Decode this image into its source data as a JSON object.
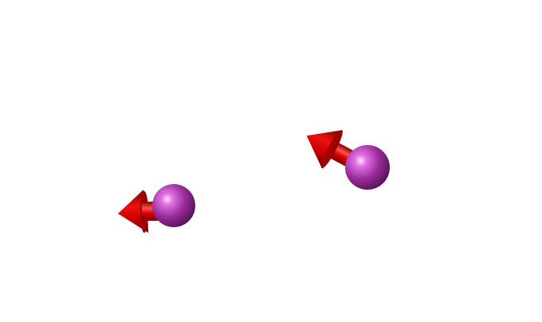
{
  "scene": {
    "background": "#ffffff",
    "objects": [
      {
        "name": "left-atom",
        "sphere_color": "#8b2a8b",
        "sphere_highlight": "#ffd8ff",
        "arrow_color": "#cc0000",
        "arrow_highlight": "#ff7070",
        "arrow_direction": "left"
      },
      {
        "name": "right-atom",
        "sphere_color": "#8b2a8b",
        "sphere_highlight": "#ffd8ff",
        "arrow_color": "#cc0000",
        "arrow_highlight": "#ff7070",
        "arrow_direction": "up-left"
      }
    ]
  }
}
